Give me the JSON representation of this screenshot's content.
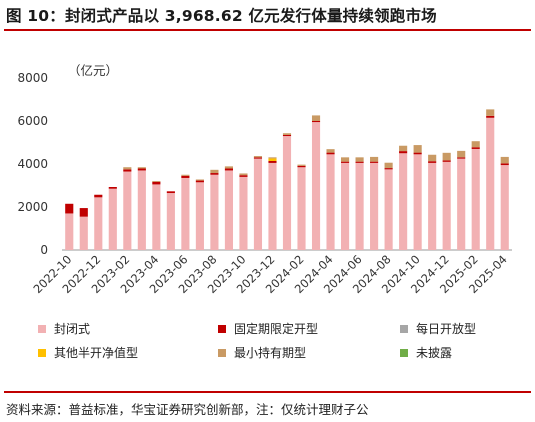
{
  "title": "图 10：封闭式产品以 3,968.62 亿元发行体量持续领跑市场",
  "source": "资料来源：普益标准，华宝证券研究创新部，注：仅统计理财子公",
  "colors": {
    "accent_rule": "#c00000",
    "封闭式": "#f2b1b3",
    "固定期限定开型": "#c00000",
    "每日开放型": "#a6a6a6",
    "其他半开净值型": "#ffc000",
    "最小持有期型": "#c99a64",
    "未披露": "#70ad47"
  },
  "chart_data": {
    "type": "bar",
    "stacked": true,
    "unit_label": "（亿元）",
    "ylim": [
      0,
      8000
    ],
    "yticks": [
      0,
      2000,
      4000,
      6000,
      8000
    ],
    "categories": [
      "2022-10",
      "2022-11",
      "2022-12",
      "2023-01",
      "2023-02",
      "2023-03",
      "2023-04",
      "2023-05",
      "2023-06",
      "2023-07",
      "2023-08",
      "2023-09",
      "2023-10",
      "2023-11",
      "2023-12",
      "2024-01",
      "2024-02",
      "2024-03",
      "2024-04",
      "2024-05",
      "2024-06",
      "2024-07",
      "2024-08",
      "2024-09",
      "2024-10",
      "2024-11",
      "2024-12",
      "2025-01",
      "2025-02",
      "2025-03",
      "2025-04"
    ],
    "xtick_labels": [
      "2022-10",
      "",
      "2022-12",
      "",
      "2023-02",
      "",
      "2023-04",
      "",
      "2023-06",
      "",
      "2023-08",
      "",
      "2023-10",
      "",
      "2023-12",
      "",
      "2024-02",
      "",
      "2024-04",
      "",
      "2024-06",
      "",
      "2024-08",
      "",
      "2024-10",
      "",
      "2024-12",
      "",
      "2025-02",
      "",
      "2025-04"
    ],
    "series": [
      {
        "name": "封闭式",
        "values": [
          1700,
          1550,
          2450,
          2850,
          3650,
          3700,
          3050,
          2650,
          3350,
          3150,
          3500,
          3700,
          3400,
          4250,
          4050,
          5300,
          3850,
          5950,
          4450,
          4050,
          4050,
          4050,
          3750,
          4500,
          4450,
          4050,
          4100,
          4250,
          4700,
          6150,
          3950
        ]
      },
      {
        "name": "固定期限定开型",
        "values": [
          450,
          400,
          120,
          80,
          100,
          90,
          120,
          80,
          100,
          80,
          80,
          90,
          80,
          60,
          90,
          50,
          60,
          50,
          80,
          60,
          60,
          60,
          60,
          100,
          80,
          80,
          70,
          60,
          80,
          90,
          80
        ]
      },
      {
        "name": "每日开放型",
        "values": [
          0,
          0,
          0,
          0,
          0,
          0,
          0,
          0,
          0,
          0,
          0,
          0,
          0,
          0,
          0,
          0,
          0,
          0,
          0,
          0,
          0,
          0,
          0,
          0,
          0,
          0,
          0,
          0,
          0,
          0,
          0
        ]
      },
      {
        "name": "其他半开净值型",
        "values": [
          0,
          0,
          0,
          0,
          0,
          0,
          0,
          0,
          0,
          0,
          0,
          0,
          0,
          0,
          120,
          0,
          0,
          0,
          0,
          0,
          0,
          0,
          0,
          0,
          0,
          0,
          0,
          0,
          0,
          0,
          0
        ]
      },
      {
        "name": "最小持有期型",
        "values": [
          0,
          0,
          0,
          0,
          100,
          60,
          40,
          0,
          50,
          50,
          150,
          100,
          80,
          60,
          50,
          80,
          60,
          260,
          160,
          200,
          200,
          220,
          250,
          250,
          350,
          300,
          350,
          300,
          280,
          300,
          300
        ]
      },
      {
        "name": "未披露",
        "values": [
          0,
          0,
          0,
          0,
          0,
          0,
          0,
          0,
          0,
          0,
          0,
          0,
          0,
          0,
          0,
          0,
          0,
          0,
          0,
          0,
          0,
          0,
          0,
          0,
          0,
          0,
          0,
          0,
          0,
          0,
          0
        ]
      }
    ],
    "legend_order": [
      "封闭式",
      "固定期限定开型",
      "每日开放型",
      "其他半开净值型",
      "最小持有期型",
      "未披露"
    ]
  }
}
